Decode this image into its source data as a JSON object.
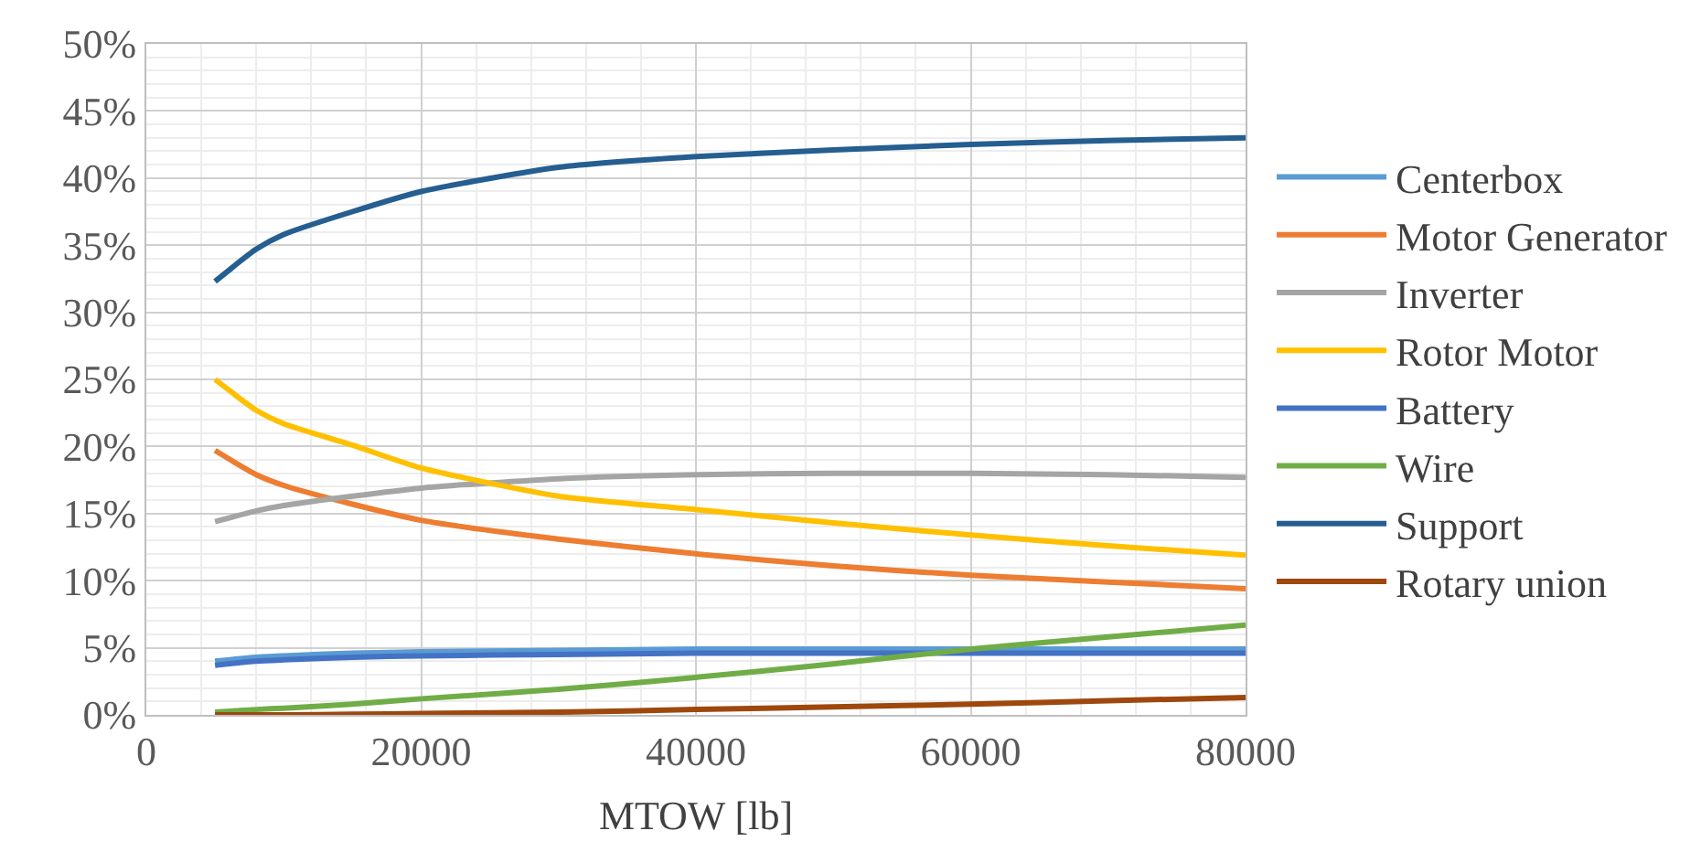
{
  "chart_data": {
    "type": "line",
    "xlabel": "MTOW [lb]",
    "x": [
      5000,
      8000,
      10000,
      15000,
      20000,
      30000,
      40000,
      50000,
      60000,
      70000,
      80000
    ],
    "series": [
      {
        "name": "Centerbox",
        "color": "#5b9bd5",
        "values": [
          4.0,
          4.3,
          4.4,
          4.6,
          4.7,
          4.8,
          4.9,
          4.9,
          4.9,
          4.9,
          4.9
        ]
      },
      {
        "name": "Motor Generator",
        "color": "#ed7d31",
        "values": [
          19.7,
          17.9,
          17.1,
          15.7,
          14.5,
          13.1,
          12.0,
          11.1,
          10.4,
          9.9,
          9.4
        ]
      },
      {
        "name": "Inverter",
        "color": "#a5a5a5",
        "values": [
          14.4,
          15.2,
          15.6,
          16.3,
          16.9,
          17.6,
          17.9,
          18.0,
          18.0,
          17.9,
          17.7
        ]
      },
      {
        "name": "Rotor Motor",
        "color": "#ffc000",
        "values": [
          25.0,
          22.7,
          21.7,
          20.1,
          18.4,
          16.3,
          15.3,
          14.3,
          13.4,
          12.6,
          11.9
        ]
      },
      {
        "name": "Battery",
        "color": "#4472c4",
        "values": [
          3.7,
          4.0,
          4.1,
          4.3,
          4.4,
          4.5,
          4.6,
          4.6,
          4.6,
          4.6,
          4.6
        ]
      },
      {
        "name": "Wire",
        "color": "#70ad47",
        "values": [
          0.2,
          0.4,
          0.5,
          0.8,
          1.2,
          1.9,
          2.8,
          3.8,
          4.9,
          5.8,
          6.7
        ]
      },
      {
        "name": "Support",
        "color": "#255e91",
        "values": [
          32.3,
          34.7,
          35.8,
          37.5,
          39.0,
          40.8,
          41.6,
          42.1,
          42.5,
          42.8,
          43.0
        ]
      },
      {
        "name": "Rotary union",
        "color": "#9e480e",
        "values": [
          0.0,
          0.0,
          0.0,
          0.05,
          0.1,
          0.2,
          0.4,
          0.6,
          0.8,
          1.05,
          1.3
        ]
      }
    ],
    "xlim": [
      0,
      80000
    ],
    "xticks": [
      0,
      20000,
      40000,
      60000,
      80000
    ],
    "ylim": [
      0,
      50
    ],
    "yticks": [
      {
        "value": 0,
        "label": "0%"
      },
      {
        "value": 5,
        "label": "5%"
      },
      {
        "value": 10,
        "label": "10%"
      },
      {
        "value": 15,
        "label": "15%"
      },
      {
        "value": 20,
        "label": "20%"
      },
      {
        "value": 25,
        "label": "25%"
      },
      {
        "value": 30,
        "label": "30%"
      },
      {
        "value": 35,
        "label": "35%"
      },
      {
        "value": 40,
        "label": "40%"
      },
      {
        "value": 45,
        "label": "45%"
      },
      {
        "value": 50,
        "label": "50%"
      }
    ],
    "grid": true,
    "legend": "right",
    "marker": "none",
    "line_style": "solid"
  }
}
